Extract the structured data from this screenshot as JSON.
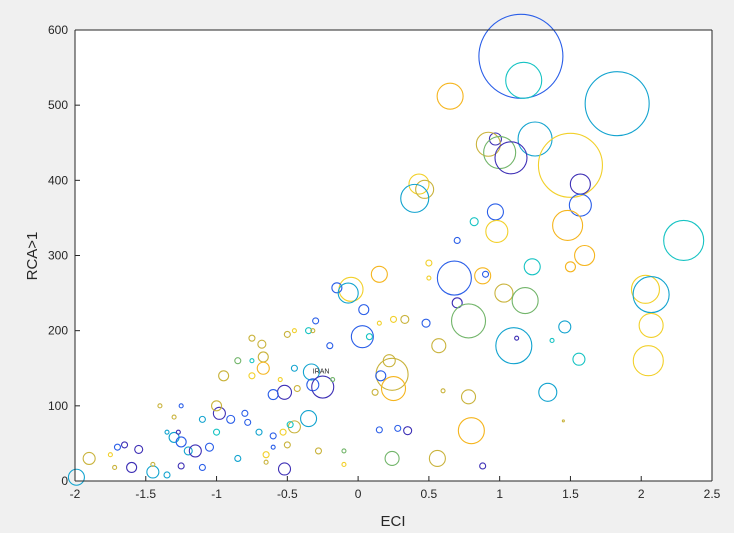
{
  "chart_data": {
    "type": "scatter",
    "subtype": "bubble",
    "xlabel": "ECI",
    "ylabel": "RCA>1",
    "xlim": [
      -2,
      2.5
    ],
    "ylim": [
      0,
      600
    ],
    "xticks": [
      "-2",
      "-1.5",
      "-1",
      "-0.5",
      "0",
      "0.5",
      "1",
      "1.5",
      "2",
      "2.5"
    ],
    "yticks": [
      "0",
      "100",
      "200",
      "300",
      "400",
      "500",
      "600"
    ],
    "grid": false,
    "annotations": [
      {
        "text": "IRAN",
        "x": -0.25,
        "y": 143
      }
    ],
    "colors": {
      "dark": "#3d2fb5",
      "blue": "#2a5ee8",
      "teal": "#12a3cf",
      "cyan": "#16c3c3",
      "green": "#72b56a",
      "olive": "#c9b33c",
      "yellow": "#f2d02a",
      "orange": "#f5b51e"
    },
    "points": [
      {
        "x": 1.15,
        "y": 565,
        "r": 42,
        "c": "blue"
      },
      {
        "x": 1.17,
        "y": 533,
        "r": 18,
        "c": "cyan"
      },
      {
        "x": 0.65,
        "y": 512,
        "r": 13,
        "c": "orange"
      },
      {
        "x": 1.83,
        "y": 502,
        "r": 32,
        "c": "teal"
      },
      {
        "x": 0.97,
        "y": 455,
        "r": 6,
        "c": "dark"
      },
      {
        "x": 1.25,
        "y": 455,
        "r": 17,
        "c": "teal"
      },
      {
        "x": 0.92,
        "y": 448,
        "r": 12,
        "c": "olive"
      },
      {
        "x": 1.0,
        "y": 437,
        "r": 16,
        "c": "green"
      },
      {
        "x": 1.08,
        "y": 430,
        "r": 16,
        "c": "dark"
      },
      {
        "x": 1.5,
        "y": 420,
        "r": 32,
        "c": "yellow"
      },
      {
        "x": 1.57,
        "y": 395,
        "r": 10,
        "c": "dark"
      },
      {
        "x": 0.43,
        "y": 395,
        "r": 10,
        "c": "yellow"
      },
      {
        "x": 0.47,
        "y": 388,
        "r": 9,
        "c": "olive"
      },
      {
        "x": 0.4,
        "y": 376,
        "r": 14,
        "c": "teal"
      },
      {
        "x": 1.57,
        "y": 367,
        "r": 11,
        "c": "blue"
      },
      {
        "x": 0.97,
        "y": 358,
        "r": 8,
        "c": "blue"
      },
      {
        "x": 0.82,
        "y": 345,
        "r": 4,
        "c": "cyan"
      },
      {
        "x": 1.48,
        "y": 340,
        "r": 15,
        "c": "orange"
      },
      {
        "x": 0.98,
        "y": 332,
        "r": 11,
        "c": "yellow"
      },
      {
        "x": 0.7,
        "y": 320,
        "r": 3,
        "c": "blue"
      },
      {
        "x": 2.3,
        "y": 320,
        "r": 20,
        "c": "cyan"
      },
      {
        "x": 1.6,
        "y": 300,
        "r": 10,
        "c": "orange"
      },
      {
        "x": 1.5,
        "y": 285,
        "r": 5,
        "c": "orange"
      },
      {
        "x": 1.23,
        "y": 285,
        "r": 8,
        "c": "cyan"
      },
      {
        "x": 0.5,
        "y": 290,
        "r": 3,
        "c": "yellow"
      },
      {
        "x": 0.68,
        "y": 270,
        "r": 17,
        "c": "blue"
      },
      {
        "x": 0.88,
        "y": 273,
        "r": 8,
        "c": "orange"
      },
      {
        "x": 0.9,
        "y": 275,
        "r": 3,
        "c": "blue"
      },
      {
        "x": 0.15,
        "y": 275,
        "r": 8,
        "c": "orange"
      },
      {
        "x": -0.05,
        "y": 255,
        "r": 12,
        "c": "yellow"
      },
      {
        "x": -0.15,
        "y": 257,
        "r": 5,
        "c": "blue"
      },
      {
        "x": -0.07,
        "y": 250,
        "r": 10,
        "c": "teal"
      },
      {
        "x": 2.03,
        "y": 255,
        "r": 14,
        "c": "yellow"
      },
      {
        "x": 2.07,
        "y": 248,
        "r": 18,
        "c": "teal"
      },
      {
        "x": 1.03,
        "y": 250,
        "r": 9,
        "c": "olive"
      },
      {
        "x": 1.18,
        "y": 240,
        "r": 13,
        "c": "green"
      },
      {
        "x": 0.7,
        "y": 237,
        "r": 5,
        "c": "dark"
      },
      {
        "x": 0.04,
        "y": 228,
        "r": 5,
        "c": "blue"
      },
      {
        "x": 0.25,
        "y": 215,
        "r": 3,
        "c": "yellow"
      },
      {
        "x": 0.33,
        "y": 215,
        "r": 4,
        "c": "olive"
      },
      {
        "x": 0.48,
        "y": 210,
        "r": 4,
        "c": "blue"
      },
      {
        "x": 0.78,
        "y": 213,
        "r": 17,
        "c": "green"
      },
      {
        "x": 2.07,
        "y": 207,
        "r": 12,
        "c": "yellow"
      },
      {
        "x": 1.46,
        "y": 205,
        "r": 6,
        "c": "teal"
      },
      {
        "x": 0.03,
        "y": 192,
        "r": 11,
        "c": "blue"
      },
      {
        "x": 0.08,
        "y": 192,
        "r": 3,
        "c": "cyan"
      },
      {
        "x": 1.12,
        "y": 190,
        "r": 2,
        "c": "dark"
      },
      {
        "x": 1.37,
        "y": 187,
        "r": 2,
        "c": "cyan"
      },
      {
        "x": 1.1,
        "y": 180,
        "r": 18,
        "c": "teal"
      },
      {
        "x": 0.57,
        "y": 180,
        "r": 7,
        "c": "olive"
      },
      {
        "x": 2.05,
        "y": 160,
        "r": 15,
        "c": "yellow"
      },
      {
        "x": 1.56,
        "y": 162,
        "r": 6,
        "c": "cyan"
      },
      {
        "x": 0.22,
        "y": 160,
        "r": 6,
        "c": "olive"
      },
      {
        "x": 0.24,
        "y": 142,
        "r": 16,
        "c": "olive"
      },
      {
        "x": 0.16,
        "y": 140,
        "r": 5,
        "c": "blue"
      },
      {
        "x": 0.25,
        "y": 123,
        "r": 12,
        "c": "orange"
      },
      {
        "x": 0.12,
        "y": 118,
        "r": 3,
        "c": "olive"
      },
      {
        "x": -0.33,
        "y": 145,
        "r": 8,
        "c": "teal"
      },
      {
        "x": -0.32,
        "y": 128,
        "r": 6,
        "c": "blue"
      },
      {
        "x": -0.25,
        "y": 125,
        "r": 11,
        "c": "dark"
      },
      {
        "x": -0.18,
        "y": 135,
        "r": 2,
        "c": "green"
      },
      {
        "x": -0.52,
        "y": 118,
        "r": 7,
        "c": "dark"
      },
      {
        "x": -0.43,
        "y": 123,
        "r": 3,
        "c": "olive"
      },
      {
        "x": -0.6,
        "y": 115,
        "r": 5,
        "c": "blue"
      },
      {
        "x": -0.55,
        "y": 135,
        "r": 2,
        "c": "yellow"
      },
      {
        "x": -0.45,
        "y": 150,
        "r": 3,
        "c": "teal"
      },
      {
        "x": -0.67,
        "y": 165,
        "r": 5,
        "c": "olive"
      },
      {
        "x": -0.67,
        "y": 150,
        "r": 6,
        "c": "orange"
      },
      {
        "x": -0.75,
        "y": 160,
        "r": 2,
        "c": "cyan"
      },
      {
        "x": -0.75,
        "y": 190,
        "r": 3,
        "c": "olive"
      },
      {
        "x": -0.68,
        "y": 182,
        "r": 4,
        "c": "olive"
      },
      {
        "x": -0.5,
        "y": 195,
        "r": 3,
        "c": "olive"
      },
      {
        "x": -0.35,
        "y": 200,
        "r": 3,
        "c": "cyan"
      },
      {
        "x": -0.3,
        "y": 213,
        "r": 3,
        "c": "blue"
      },
      {
        "x": -0.2,
        "y": 180,
        "r": 3,
        "c": "blue"
      },
      {
        "x": -0.32,
        "y": 200,
        "r": 2,
        "c": "olive"
      },
      {
        "x": -0.45,
        "y": 200,
        "r": 2,
        "c": "yellow"
      },
      {
        "x": -0.85,
        "y": 160,
        "r": 3,
        "c": "green"
      },
      {
        "x": -0.95,
        "y": 140,
        "r": 5,
        "c": "olive"
      },
      {
        "x": -0.75,
        "y": 140,
        "r": 3,
        "c": "yellow"
      },
      {
        "x": -0.35,
        "y": 83,
        "r": 8,
        "c": "teal"
      },
      {
        "x": -0.45,
        "y": 72,
        "r": 6,
        "c": "olive"
      },
      {
        "x": -0.53,
        "y": 65,
        "r": 3,
        "c": "yellow"
      },
      {
        "x": -0.5,
        "y": 48,
        "r": 3,
        "c": "olive"
      },
      {
        "x": -0.48,
        "y": 75,
        "r": 3,
        "c": "cyan"
      },
      {
        "x": -0.6,
        "y": 60,
        "r": 3,
        "c": "blue"
      },
      {
        "x": -0.6,
        "y": 45,
        "r": 2,
        "c": "blue"
      },
      {
        "x": -0.7,
        "y": 65,
        "r": 3,
        "c": "teal"
      },
      {
        "x": -0.78,
        "y": 78,
        "r": 3,
        "c": "blue"
      },
      {
        "x": -0.8,
        "y": 90,
        "r": 3,
        "c": "blue"
      },
      {
        "x": -0.9,
        "y": 82,
        "r": 4,
        "c": "blue"
      },
      {
        "x": -0.98,
        "y": 90,
        "r": 6,
        "c": "dark"
      },
      {
        "x": -1.0,
        "y": 100,
        "r": 5,
        "c": "olive"
      },
      {
        "x": -1.1,
        "y": 82,
        "r": 3,
        "c": "teal"
      },
      {
        "x": -1.25,
        "y": 100,
        "r": 2,
        "c": "blue"
      },
      {
        "x": -1.3,
        "y": 85,
        "r": 2,
        "c": "olive"
      },
      {
        "x": -1.4,
        "y": 100,
        "r": 2,
        "c": "olive"
      },
      {
        "x": -1.35,
        "y": 65,
        "r": 2,
        "c": "teal"
      },
      {
        "x": -1.3,
        "y": 58,
        "r": 5,
        "c": "teal"
      },
      {
        "x": -1.25,
        "y": 52,
        "r": 5,
        "c": "blue"
      },
      {
        "x": -1.27,
        "y": 65,
        "r": 2,
        "c": "dark"
      },
      {
        "x": -1.2,
        "y": 40,
        "r": 4,
        "c": "teal"
      },
      {
        "x": -1.15,
        "y": 40,
        "r": 6,
        "c": "dark"
      },
      {
        "x": -1.05,
        "y": 45,
        "r": 4,
        "c": "blue"
      },
      {
        "x": -1.0,
        "y": 65,
        "r": 3,
        "c": "cyan"
      },
      {
        "x": -1.55,
        "y": 42,
        "r": 4,
        "c": "dark"
      },
      {
        "x": -1.65,
        "y": 48,
        "r": 3,
        "c": "dark"
      },
      {
        "x": -1.7,
        "y": 45,
        "r": 3,
        "c": "blue"
      },
      {
        "x": -1.75,
        "y": 35,
        "r": 2,
        "c": "yellow"
      },
      {
        "x": -1.72,
        "y": 18,
        "r": 2,
        "c": "olive"
      },
      {
        "x": -1.6,
        "y": 18,
        "r": 5,
        "c": "dark"
      },
      {
        "x": -1.45,
        "y": 12,
        "r": 6,
        "c": "teal"
      },
      {
        "x": -1.35,
        "y": 8,
        "r": 3,
        "c": "teal"
      },
      {
        "x": -1.45,
        "y": 22,
        "r": 2,
        "c": "olive"
      },
      {
        "x": -1.25,
        "y": 20,
        "r": 3,
        "c": "dark"
      },
      {
        "x": -1.1,
        "y": 18,
        "r": 3,
        "c": "blue"
      },
      {
        "x": -1.9,
        "y": 30,
        "r": 6,
        "c": "olive"
      },
      {
        "x": -1.99,
        "y": 5,
        "r": 8,
        "c": "teal"
      },
      {
        "x": -0.85,
        "y": 30,
        "r": 3,
        "c": "teal"
      },
      {
        "x": -0.65,
        "y": 25,
        "r": 2,
        "c": "olive"
      },
      {
        "x": -0.65,
        "y": 35,
        "r": 3,
        "c": "yellow"
      },
      {
        "x": -0.52,
        "y": 16,
        "r": 6,
        "c": "dark"
      },
      {
        "x": -0.28,
        "y": 40,
        "r": 3,
        "c": "olive"
      },
      {
        "x": -0.1,
        "y": 22,
        "r": 2,
        "c": "yellow"
      },
      {
        "x": -0.1,
        "y": 40,
        "r": 2,
        "c": "green"
      },
      {
        "x": 0.15,
        "y": 68,
        "r": 3,
        "c": "blue"
      },
      {
        "x": 0.28,
        "y": 70,
        "r": 3,
        "c": "blue"
      },
      {
        "x": 0.35,
        "y": 67,
        "r": 4,
        "c": "dark"
      },
      {
        "x": 0.24,
        "y": 30,
        "r": 7,
        "c": "green"
      },
      {
        "x": 0.56,
        "y": 30,
        "r": 8,
        "c": "olive"
      },
      {
        "x": 0.8,
        "y": 67,
        "r": 13,
        "c": "orange"
      },
      {
        "x": 0.78,
        "y": 112,
        "r": 7,
        "c": "olive"
      },
      {
        "x": 0.88,
        "y": 20,
        "r": 3,
        "c": "dark"
      },
      {
        "x": 1.34,
        "y": 118,
        "r": 9,
        "c": "teal"
      },
      {
        "x": 1.45,
        "y": 80,
        "r": 1,
        "c": "olive"
      },
      {
        "x": 0.6,
        "y": 120,
        "r": 2,
        "c": "olive"
      },
      {
        "x": 0.15,
        "y": 210,
        "r": 2,
        "c": "yellow"
      },
      {
        "x": 0.5,
        "y": 270,
        "r": 2,
        "c": "yellow"
      }
    ]
  }
}
